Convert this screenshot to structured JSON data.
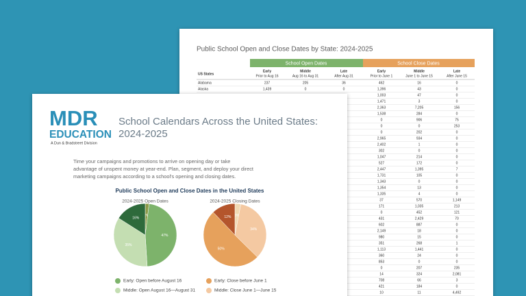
{
  "back_document": {
    "title": "Public School Open and Close Dates by State: 2024-2025",
    "group_headers": [
      "School Open Dates",
      "School Close Dates"
    ],
    "row_header": "US States",
    "columns": [
      {
        "label": "Early",
        "sub": "Prior to Aug 16"
      },
      {
        "label": "Middle",
        "sub": "Aug 16 to Aug 31"
      },
      {
        "label": "Late",
        "sub": "After Aug 31"
      },
      {
        "label": "Early",
        "sub": "Prior to June 1"
      },
      {
        "label": "Middle",
        "sub": "June 1 to June 15"
      },
      {
        "label": "Late",
        "sub": "After June 15"
      }
    ],
    "rows": [
      {
        "state": "Alabama",
        "values": [
          "237",
          "205",
          "36",
          "462",
          "16",
          "0"
        ]
      },
      {
        "state": "Alaska",
        "values": [
          "1,439",
          "0",
          "0",
          "1,396",
          "43",
          "0"
        ]
      }
    ],
    "partial_rows": [
      [
        "1,003",
        "47",
        "0"
      ],
      [
        "1,471",
        "3",
        "0"
      ],
      [
        "2,363",
        "7,205",
        "156"
      ],
      [
        "1,538",
        "284",
        "0"
      ],
      [
        "0",
        "906",
        "75"
      ],
      [
        "0",
        "0",
        "253"
      ],
      [
        "0",
        "202",
        "0"
      ],
      [
        "2,965",
        "934",
        "0"
      ],
      [
        "2,402",
        "1",
        "0"
      ],
      [
        "302",
        "0",
        "0"
      ],
      [
        "1,047",
        "214",
        "0"
      ],
      [
        "527",
        "172",
        "0"
      ],
      [
        "2,447",
        "1,395",
        "7"
      ],
      [
        "1,731",
        "105",
        "0"
      ],
      [
        "1,343",
        "0",
        "0"
      ],
      [
        "1,354",
        "13",
        "0"
      ],
      [
        "1,335",
        "4",
        "0"
      ],
      [
        "37",
        "570",
        "1,149"
      ],
      [
        "171",
        "1,035",
        "213"
      ],
      [
        "0",
        "452",
        "121"
      ],
      [
        "431",
        "2,429",
        "70"
      ],
      [
        "602",
        "887",
        "0"
      ],
      [
        "2,149",
        "18",
        "0"
      ],
      [
        "980",
        "15",
        "0"
      ],
      [
        "351",
        "268",
        "1"
      ],
      [
        "1,113",
        "1,441",
        "0"
      ],
      [
        "360",
        "24",
        "0"
      ],
      [
        "853",
        "0",
        "0"
      ],
      [
        "0",
        "207",
        "235"
      ],
      [
        "14",
        "324",
        "2,081"
      ],
      [
        "708",
        "66",
        "3"
      ],
      [
        "421",
        "184",
        "0"
      ],
      [
        "10",
        "11",
        "4,492"
      ]
    ]
  },
  "front_document": {
    "logo": {
      "brand": "MDR",
      "line2": "EDUCATION",
      "division": "A Dun & Bradstreet Division"
    },
    "title_lines": [
      "School Calendars Across the United States:",
      "2024-2025"
    ],
    "paragraph_lines": [
      "Time your campaigns and promotions to arrive on opening day or take",
      "advantage of unspent money at year-end. Plan, segment, and deploy your direct",
      "marketing campaigns according to a school's opening and closing dates."
    ],
    "chart_heading": "Public School Open and Close Dates in the United States"
  },
  "chart_data": [
    {
      "type": "pie",
      "title": "2024-2025 Open Dates",
      "categories": [
        null,
        "Early: Open before August 16",
        "Middle: Open August 16—August 31",
        null
      ],
      "values": [
        2,
        47,
        35,
        16
      ],
      "value_labels": [
        "2%",
        "47%",
        "35%",
        "16%"
      ],
      "colors": [
        "#8c9a48",
        "#7db36b",
        "#c4deb2",
        "#2e6a3b"
      ]
    },
    {
      "type": "pie",
      "title": "2024-2025 Closing Dates",
      "categories": [
        null,
        "Middle: Close June 1—June 15",
        "Early: Close before June 1",
        null
      ],
      "values": [
        3,
        34,
        50,
        12
      ],
      "value_labels": [
        "3%",
        "34%",
        "50%",
        "12%"
      ],
      "colors": [
        "#f1d9b3",
        "#f4c9a2",
        "#e6a15c",
        "#b4552c"
      ]
    }
  ]
}
